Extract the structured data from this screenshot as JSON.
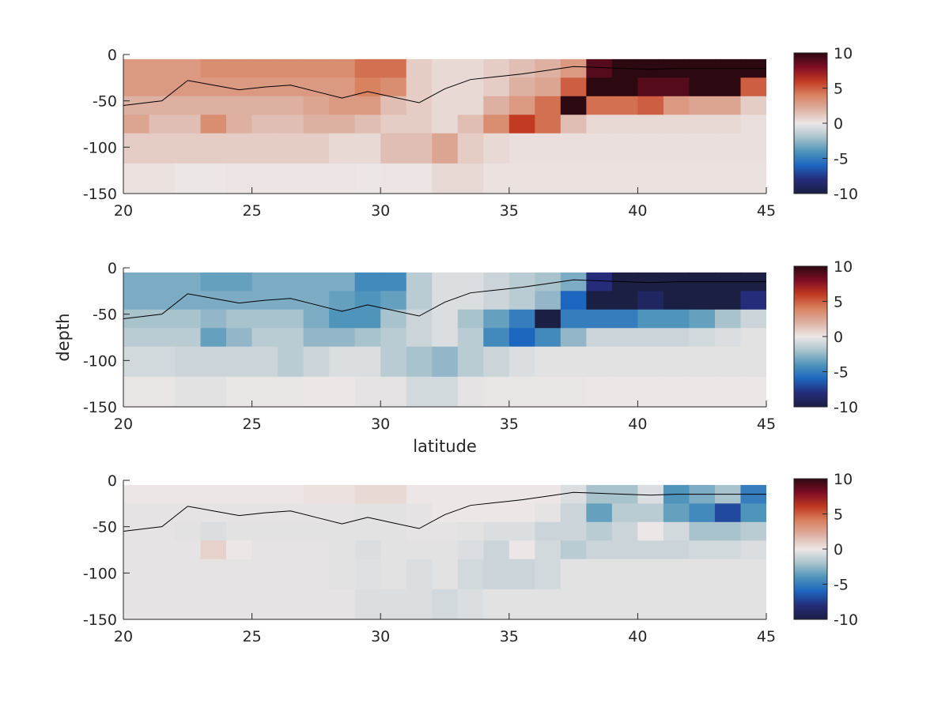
{
  "colors": {
    "colormap_stops": [
      [
        -10,
        "#1b1f44"
      ],
      [
        -8,
        "#252c7a"
      ],
      [
        -6,
        "#1c66c0"
      ],
      [
        -4,
        "#4f94bb"
      ],
      [
        -2,
        "#a9c3cc"
      ],
      [
        0,
        "#ece7e6"
      ],
      [
        2,
        "#ddb0a2"
      ],
      [
        4,
        "#d98260"
      ],
      [
        6,
        "#c23a22"
      ],
      [
        8,
        "#7e0d24"
      ],
      [
        10,
        "#2c0811"
      ]
    ],
    "line": "#000000",
    "axis": "#262626"
  },
  "chart_data": [
    {
      "type": "heatmap",
      "xlabel": "",
      "ylabel": "",
      "xlim": [
        20,
        45
      ],
      "ylim": [
        -150,
        0
      ],
      "xticks": [
        "20",
        "25",
        "30",
        "35",
        "40",
        "45"
      ],
      "yticks": [
        "0",
        "-50",
        "-100",
        "-150"
      ],
      "clim": [
        -10,
        10
      ],
      "colorbar_ticks": [
        "10",
        "5",
        "0",
        "-5",
        "-10"
      ],
      "x": [
        20.5,
        21.5,
        22.5,
        23.5,
        24.5,
        25.5,
        26.5,
        27.5,
        28.5,
        29.5,
        30.5,
        31.5,
        32.5,
        33.5,
        34.5,
        35.5,
        36.5,
        37.5,
        38.5,
        39.5,
        40.5,
        41.5,
        42.5,
        43.5,
        44.5
      ],
      "y": [
        -15,
        -35,
        -55,
        -75,
        -100,
        -135
      ],
      "values": [
        [
          3,
          3,
          3,
          3.5,
          3.5,
          3.5,
          3.5,
          3.5,
          3.5,
          4.5,
          4.5,
          1,
          0.5,
          0.5,
          1,
          1.5,
          2,
          3,
          9,
          10,
          10,
          10,
          10,
          10,
          10
        ],
        [
          3,
          3,
          3,
          3,
          3,
          3,
          3,
          3,
          3,
          4,
          3.5,
          1,
          0.5,
          0.5,
          1,
          2,
          2.5,
          5,
          10,
          10,
          9,
          9,
          10,
          10,
          5
        ],
        [
          2,
          2,
          2,
          2,
          2,
          2,
          2,
          2.5,
          3,
          3,
          1.5,
          1,
          0.5,
          0.5,
          2,
          3,
          4.5,
          10,
          4.5,
          4.5,
          5,
          3,
          2.5,
          2.5,
          1
        ],
        [
          2.5,
          1.5,
          1.5,
          3.5,
          2,
          1.5,
          1.5,
          2,
          2,
          1.5,
          1,
          1,
          0.5,
          1.5,
          3.5,
          6,
          4.5,
          1.5,
          0.5,
          0.5,
          0.5,
          0.5,
          0.5,
          0.5,
          0.3
        ],
        [
          1,
          1,
          1,
          1,
          1,
          1,
          1,
          1,
          0.5,
          0.5,
          1.5,
          1.5,
          2.5,
          1,
          0.5,
          0.3,
          0.3,
          0.3,
          0.3,
          0.3,
          0.3,
          0.3,
          0.3,
          0.3,
          0.3
        ],
        [
          0.2,
          0.2,
          0,
          0,
          0.1,
          0.1,
          0.1,
          0.1,
          0.1,
          0,
          0.1,
          0.1,
          0.5,
          0.5,
          0.2,
          0.2,
          0.2,
          0.2,
          0.2,
          0.2,
          0.2,
          0.2,
          0.2,
          0.2,
          0.2
        ]
      ],
      "line": {
        "x": [
          20,
          21.5,
          22.5,
          23.5,
          24.5,
          25.5,
          26.5,
          27.5,
          28.5,
          29.5,
          30.5,
          31.5,
          32.5,
          33.5,
          34.5,
          35.5,
          36.5,
          37.5,
          38.5,
          39.5,
          40.5,
          41.5,
          42.5,
          43.5,
          45
        ],
        "y": [
          -55,
          -50,
          -28,
          -33,
          -38,
          -35,
          -33,
          -40,
          -47,
          -40,
          -46,
          -52,
          -37,
          -27,
          -24,
          -21,
          -17,
          -13,
          -14,
          -15,
          -16,
          -15,
          -15,
          -15,
          -15
        ]
      }
    },
    {
      "type": "heatmap",
      "xlabel": "latitude",
      "ylabel": "depth",
      "xlim": [
        20,
        45
      ],
      "ylim": [
        -150,
        0
      ],
      "xticks": [
        "20",
        "25",
        "30",
        "35",
        "40",
        "45"
      ],
      "yticks": [
        "0",
        "-50",
        "-100",
        "-150"
      ],
      "clim": [
        -10,
        10
      ],
      "colorbar_ticks": [
        "10",
        "5",
        "0",
        "-5",
        "-10"
      ],
      "x": [
        20.5,
        21.5,
        22.5,
        23.5,
        24.5,
        25.5,
        26.5,
        27.5,
        28.5,
        29.5,
        30.5,
        31.5,
        32.5,
        33.5,
        34.5,
        35.5,
        36.5,
        37.5,
        38.5,
        39.5,
        40.5,
        41.5,
        42.5,
        43.5,
        44.5
      ],
      "y": [
        -15,
        -35,
        -55,
        -75,
        -100,
        -135
      ],
      "values": [
        [
          -3,
          -3,
          -3,
          -3.5,
          -3.5,
          -3,
          -3,
          -3,
          -3,
          -4.5,
          -4.5,
          -1.5,
          -0.5,
          -0.5,
          -1,
          -1.5,
          -2,
          -3,
          -8,
          -10,
          -10,
          -10,
          -10,
          -10,
          -10
        ],
        [
          -3,
          -3,
          -3,
          -3,
          -3,
          -3,
          -3,
          -3,
          -3.5,
          -4,
          -3.5,
          -1.5,
          -0.5,
          -0.5,
          -1,
          -1.5,
          -2.5,
          -6,
          -10,
          -10,
          -9,
          -10,
          -10,
          -10,
          -8
        ],
        [
          -2,
          -2,
          -2,
          -2.5,
          -2,
          -2,
          -2,
          -3,
          -4,
          -4,
          -2,
          -1,
          -0.5,
          -2,
          -3.5,
          -5,
          -10,
          -5,
          -5,
          -5,
          -4,
          -4,
          -3.5,
          -2,
          -1
        ],
        [
          -1.5,
          -1.5,
          -1.5,
          -3.5,
          -2.5,
          -1.5,
          -1.5,
          -2.5,
          -2.5,
          -2,
          -1.5,
          -1,
          -0.5,
          -1.5,
          -4.5,
          -6,
          -4.5,
          -2.5,
          -1,
          -1,
          -1,
          -1,
          -0.8,
          -0.5,
          -0.3
        ],
        [
          -0.8,
          -0.8,
          -1,
          -1,
          -1,
          -1,
          -1.5,
          -1,
          -0.5,
          -0.5,
          -1.5,
          -2,
          -2.5,
          -1.5,
          -1,
          -0.5,
          -0.3,
          -0.3,
          -0.3,
          -0.3,
          -0.3,
          -0.3,
          -0.3,
          -0.3,
          -0.3
        ],
        [
          -0.1,
          -0.1,
          -0.3,
          -0.3,
          -0.1,
          -0.1,
          -0.1,
          0,
          0,
          -0.2,
          -0.2,
          -0.8,
          -0.8,
          -0.2,
          -0.1,
          -0.1,
          -0.1,
          -0.1,
          0,
          0,
          0,
          0,
          0,
          0,
          0
        ]
      ],
      "line": {
        "x": [
          20,
          21.5,
          22.5,
          23.5,
          24.5,
          25.5,
          26.5,
          27.5,
          28.5,
          29.5,
          30.5,
          31.5,
          32.5,
          33.5,
          34.5,
          35.5,
          36.5,
          37.5,
          38.5,
          39.5,
          40.5,
          41.5,
          42.5,
          43.5,
          45
        ],
        "y": [
          -55,
          -50,
          -28,
          -33,
          -38,
          -35,
          -33,
          -40,
          -47,
          -40,
          -46,
          -52,
          -37,
          -27,
          -24,
          -21,
          -17,
          -13,
          -14,
          -15,
          -16,
          -15,
          -15,
          -15,
          -15
        ]
      }
    },
    {
      "type": "heatmap",
      "xlabel": "",
      "ylabel": "",
      "xlim": [
        20,
        45
      ],
      "ylim": [
        -150,
        0
      ],
      "xticks": [
        "20",
        "25",
        "30",
        "35",
        "40",
        "45"
      ],
      "yticks": [
        "0",
        "-50",
        "-100",
        "-150"
      ],
      "clim": [
        -10,
        10
      ],
      "colorbar_ticks": [
        "10",
        "5",
        "0",
        "-5",
        "-10"
      ],
      "x": [
        20.5,
        21.5,
        22.5,
        23.5,
        24.5,
        25.5,
        26.5,
        27.5,
        28.5,
        29.5,
        30.5,
        31.5,
        32.5,
        33.5,
        34.5,
        35.5,
        36.5,
        37.5,
        38.5,
        39.5,
        40.5,
        41.5,
        42.5,
        43.5,
        44.5
      ],
      "y": [
        -15,
        -35,
        -55,
        -75,
        -100,
        -135
      ],
      "values": [
        [
          0,
          0,
          0,
          0,
          0,
          0,
          0,
          0.2,
          0.2,
          0.5,
          0.5,
          0,
          0,
          0,
          0,
          0,
          0,
          -0.5,
          -2,
          -2,
          -0.5,
          -4,
          -3,
          -2,
          -5
        ],
        [
          -0.2,
          -0.2,
          -0.2,
          -0.2,
          -0.2,
          -0.2,
          -0.2,
          -0.2,
          -0.2,
          -0.3,
          -0.3,
          -0.2,
          0,
          0,
          0,
          0,
          -0.2,
          -1,
          -3.5,
          -1.5,
          -1.5,
          -3.5,
          -4.5,
          -7,
          -4
        ],
        [
          -0.2,
          -0.2,
          -0.3,
          -0.5,
          -0.3,
          -0.3,
          -0.3,
          -0.3,
          -0.3,
          -0.3,
          -0.3,
          -0.2,
          -0.2,
          -0.3,
          -0.5,
          -0.5,
          -1,
          -1,
          -1.5,
          -1,
          0,
          -0.8,
          -2,
          -2,
          -1.5
        ],
        [
          -0.2,
          -0.2,
          -0.2,
          0.8,
          0,
          -0.2,
          -0.2,
          -0.2,
          -0.3,
          -0.5,
          -0.3,
          -0.3,
          -0.3,
          -0.5,
          -1,
          0,
          -0.8,
          -1.5,
          -1,
          -1,
          -1,
          -1,
          -0.8,
          -0.8,
          -0.5
        ],
        [
          -0.2,
          -0.2,
          -0.2,
          -0.2,
          -0.2,
          -0.2,
          -0.2,
          -0.2,
          -0.3,
          -0.4,
          -0.3,
          -0.5,
          -0.3,
          -0.8,
          -1,
          -1,
          -0.8,
          -0.3,
          -0.3,
          -0.3,
          -0.3,
          -0.3,
          -0.3,
          -0.3,
          -0.3
        ],
        [
          -0.2,
          -0.2,
          -0.2,
          -0.2,
          -0.2,
          -0.2,
          -0.2,
          -0.2,
          -0.2,
          -0.5,
          -0.5,
          -0.5,
          -0.8,
          -0.5,
          -0.3,
          -0.3,
          -0.3,
          -0.3,
          -0.3,
          -0.3,
          -0.3,
          -0.3,
          -0.3,
          -0.3,
          -0.3
        ]
      ],
      "line": {
        "x": [
          20,
          21.5,
          22.5,
          23.5,
          24.5,
          25.5,
          26.5,
          27.5,
          28.5,
          29.5,
          30.5,
          31.5,
          32.5,
          33.5,
          34.5,
          35.5,
          36.5,
          37.5,
          38.5,
          39.5,
          40.5,
          41.5,
          42.5,
          43.5,
          45
        ],
        "y": [
          -55,
          -50,
          -28,
          -33,
          -38,
          -35,
          -33,
          -40,
          -47,
          -40,
          -46,
          -52,
          -37,
          -27,
          -24,
          -21,
          -17,
          -13,
          -14,
          -15,
          -16,
          -15,
          -15,
          -15,
          -15
        ]
      }
    }
  ]
}
